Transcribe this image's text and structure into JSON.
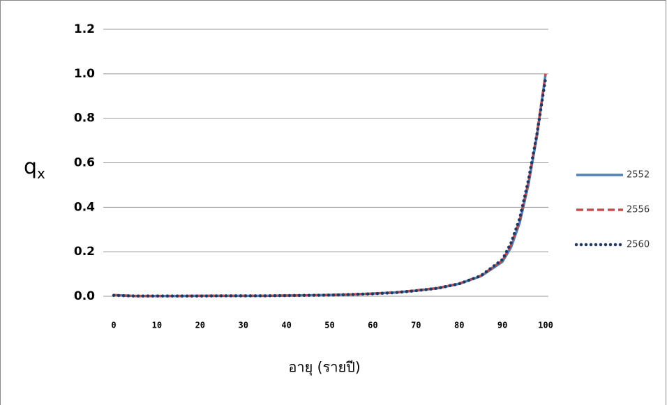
{
  "chart_data": {
    "type": "line",
    "y_label": "q",
    "y_label_subscript": "x",
    "x_label": "อายุ (รายปี)",
    "x": [
      0,
      5,
      10,
      15,
      20,
      25,
      30,
      35,
      40,
      45,
      50,
      55,
      60,
      65,
      70,
      75,
      80,
      85,
      90,
      92,
      94,
      96,
      98,
      100
    ],
    "series": [
      {
        "name": "2552",
        "color": "#4f81bd",
        "style": "solid",
        "values": [
          0.005,
          0.001,
          0.001,
          0.001,
          0.002,
          0.002,
          0.002,
          0.002,
          0.003,
          0.004,
          0.006,
          0.008,
          0.012,
          0.017,
          0.025,
          0.036,
          0.056,
          0.09,
          0.155,
          0.22,
          0.33,
          0.5,
          0.72,
          1.0
        ]
      },
      {
        "name": "2556",
        "color": "#c0504d",
        "style": "dashed",
        "values": [
          0.005,
          0.001,
          0.001,
          0.001,
          0.002,
          0.002,
          0.002,
          0.002,
          0.003,
          0.004,
          0.006,
          0.008,
          0.012,
          0.017,
          0.026,
          0.037,
          0.057,
          0.092,
          0.16,
          0.23,
          0.34,
          0.51,
          0.73,
          1.0
        ]
      },
      {
        "name": "2560",
        "color": "#1f3864",
        "style": "dotted",
        "values": [
          0.004,
          0.001,
          0.001,
          0.001,
          0.001,
          0.002,
          0.002,
          0.002,
          0.003,
          0.004,
          0.005,
          0.008,
          0.011,
          0.016,
          0.025,
          0.036,
          0.056,
          0.092,
          0.165,
          0.24,
          0.35,
          0.52,
          0.73,
          0.98
        ]
      }
    ],
    "xlim": [
      0,
      100
    ],
    "xticks": [
      0,
      10,
      20,
      30,
      40,
      50,
      60,
      70,
      80,
      90,
      100
    ],
    "ylim": [
      0,
      1.2
    ],
    "yticks": [
      {
        "value": 0,
        "label": "0.0"
      },
      0.2,
      0.4,
      0.6,
      0.8,
      {
        "value": 1,
        "label": "1.0"
      },
      1.2
    ],
    "grid": true
  }
}
